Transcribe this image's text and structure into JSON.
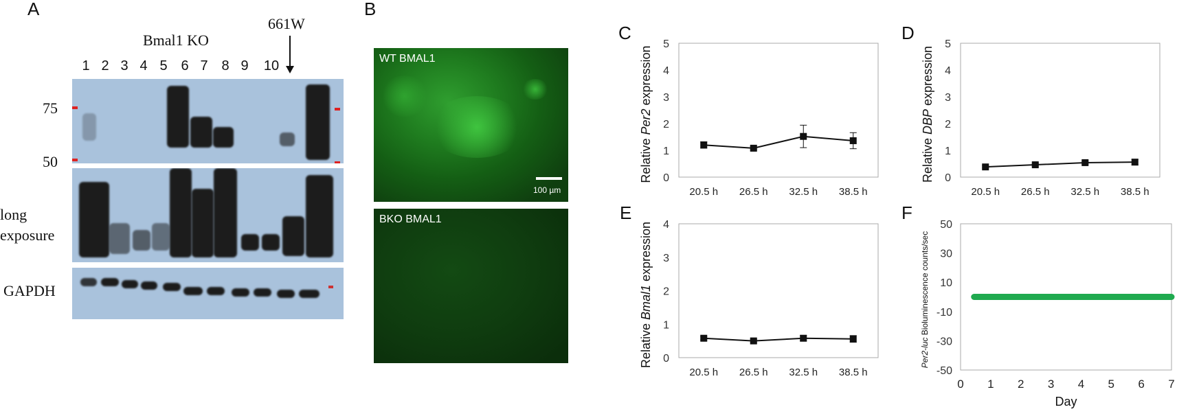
{
  "panels": {
    "A": "A",
    "B": "B",
    "C": "C",
    "D": "D",
    "E": "E",
    "F": "F"
  },
  "blot": {
    "group_label": "Bmal1 KO",
    "control_label": "661W",
    "lanes": [
      "1",
      "2",
      "3",
      "4",
      "5",
      "6",
      "7",
      "8",
      "9",
      "10"
    ],
    "markers": [
      "75",
      "50"
    ],
    "row_labels": {
      "long_line1": "long",
      "long_line2": "exposure",
      "gapdh": "GAPDH"
    }
  },
  "micrographs": {
    "top_label": "WT BMAL1",
    "bottom_label": "BKO BMAL1",
    "scale_bar": "100 µm",
    "colors": {
      "wt": "#1a7a1a",
      "bko": "#0e3a0e"
    }
  },
  "chart_data": [
    {
      "panel": "C",
      "type": "line",
      "categories": [
        "20.5 h",
        "26.5  h",
        "32.5 h",
        "38.5 h"
      ],
      "values": [
        1.2,
        1.08,
        1.52,
        1.36
      ],
      "errors": [
        0.12,
        0.06,
        0.42,
        0.3
      ],
      "ylim": [
        0,
        5
      ],
      "yticks": [
        "0",
        "1",
        "2",
        "3",
        "4",
        "5"
      ],
      "ylabel_pre": "Relative ",
      "ylabel_italic": "Per2",
      "ylabel_post": " expression"
    },
    {
      "panel": "D",
      "type": "line",
      "categories": [
        "20.5 h",
        "26.5  h",
        "32.5 h",
        "38.5 h"
      ],
      "values": [
        0.38,
        0.46,
        0.54,
        0.56
      ],
      "errors": [
        0.04,
        0.05,
        0.06,
        0.1
      ],
      "ylim": [
        0,
        5
      ],
      "yticks": [
        "0",
        "1",
        "2",
        "3",
        "4",
        "5"
      ],
      "ylabel_pre": "Relative ",
      "ylabel_italic": "DBP",
      "ylabel_post": " expression"
    },
    {
      "panel": "E",
      "type": "line",
      "categories": [
        "20.5 h",
        "26.5  h",
        "32.5 h",
        "38.5 h"
      ],
      "values": [
        0.58,
        0.5,
        0.58,
        0.56
      ],
      "errors": [
        0.05,
        0.05,
        0.08,
        0.1
      ],
      "ylim": [
        0,
        4
      ],
      "yticks": [
        "0",
        "1",
        "2",
        "3",
        "4"
      ],
      "ylabel_pre": "Relative ",
      "ylabel_italic": "Bmal1",
      "ylabel_post": " expression"
    },
    {
      "panel": "F",
      "type": "line",
      "x": [
        0.45,
        7
      ],
      "values": [
        0,
        0
      ],
      "ylim": [
        -50,
        50
      ],
      "xlim": [
        0,
        7
      ],
      "yticks": [
        "50",
        "30",
        "10",
        "-10",
        "-30",
        "-50"
      ],
      "xticks": [
        "0",
        "1",
        "2",
        "3",
        "4",
        "5",
        "6",
        "7"
      ],
      "xlabel": "Day",
      "ylabel_italic": "Per2-luc",
      "ylabel_post": " Bioluminescence counts/sec",
      "color": "#1faa4f"
    }
  ]
}
